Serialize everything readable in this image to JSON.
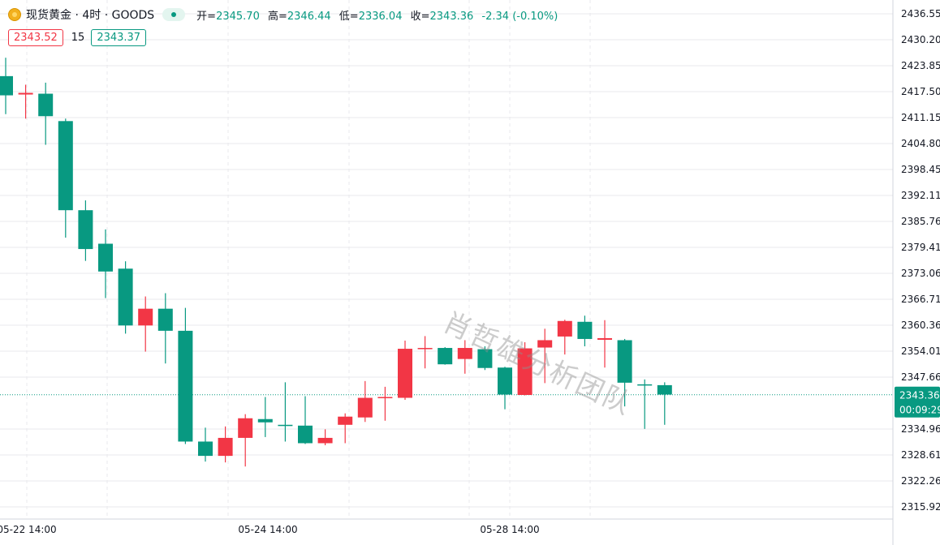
{
  "header": {
    "symbol": "现货黄金 · 4时 · GOODS",
    "open_label": "开=",
    "open_value": "2345.70",
    "high_label": "高=",
    "high_value": "2346.44",
    "low_label": "低=",
    "low_value": "2336.04",
    "close_label": "收=",
    "close_value": "2343.36",
    "change": "-2.34 (-0.10%)"
  },
  "quote": {
    "sell": "2343.52",
    "spread": "15",
    "buy": "2343.37"
  },
  "watermark": "肖哲雄分析团队",
  "colors": {
    "up": "#f23645",
    "down": "#089981",
    "grid": "#e8e9ec",
    "text": "#131722"
  },
  "chart_data": {
    "type": "candlestick",
    "y_ticks": [
      "2436.55",
      "2430.20",
      "2423.85",
      "2417.50",
      "2411.15",
      "2404.80",
      "2398.45",
      "2392.11",
      "2385.76",
      "2379.41",
      "2373.06",
      "2366.71",
      "2360.36",
      "2354.01",
      "2347.66",
      "2334.96",
      "2328.61",
      "2322.26",
      "2315.92"
    ],
    "x_labels": [
      "05-22 14:00",
      "05-24 14:00",
      "05-28 14:00"
    ],
    "last_price": "2343.36",
    "countdown": "00:09:29",
    "ylim": [
      2314,
      2437
    ],
    "candles": [
      {
        "o": 2421.3,
        "h": 2425.8,
        "l": 2412.0,
        "c": 2416.6
      },
      {
        "o": 2416.8,
        "h": 2419.2,
        "l": 2410.9,
        "c": 2417.2
      },
      {
        "o": 2417.0,
        "h": 2419.7,
        "l": 2404.5,
        "c": 2411.5
      },
      {
        "o": 2410.3,
        "h": 2410.9,
        "l": 2381.8,
        "c": 2388.5
      },
      {
        "o": 2388.5,
        "h": 2390.9,
        "l": 2376.1,
        "c": 2379.0
      },
      {
        "o": 2380.3,
        "h": 2383.8,
        "l": 2367.0,
        "c": 2373.5
      },
      {
        "o": 2374.2,
        "h": 2376.0,
        "l": 2358.3,
        "c": 2360.3
      },
      {
        "o": 2360.3,
        "h": 2367.4,
        "l": 2353.9,
        "c": 2364.4
      },
      {
        "o": 2364.4,
        "h": 2368.2,
        "l": 2351.0,
        "c": 2359.0
      },
      {
        "o": 2359.0,
        "h": 2364.6,
        "l": 2331.3,
        "c": 2331.9
      },
      {
        "o": 2331.9,
        "h": 2335.3,
        "l": 2327.0,
        "c": 2328.4
      },
      {
        "o": 2328.4,
        "h": 2335.6,
        "l": 2326.8,
        "c": 2332.8
      },
      {
        "o": 2332.8,
        "h": 2338.6,
        "l": 2325.8,
        "c": 2337.6
      },
      {
        "o": 2337.4,
        "h": 2342.8,
        "l": 2333.0,
        "c": 2336.6
      },
      {
        "o": 2336.0,
        "h": 2346.4,
        "l": 2331.9,
        "c": 2335.7
      },
      {
        "o": 2335.8,
        "h": 2343.0,
        "l": 2331.3,
        "c": 2331.5
      },
      {
        "o": 2331.5,
        "h": 2334.9,
        "l": 2331.0,
        "c": 2332.8
      },
      {
        "o": 2336.0,
        "h": 2338.8,
        "l": 2331.5,
        "c": 2338.0
      },
      {
        "o": 2337.8,
        "h": 2346.7,
        "l": 2336.7,
        "c": 2342.6
      },
      {
        "o": 2342.6,
        "h": 2345.3,
        "l": 2337.0,
        "c": 2342.8
      },
      {
        "o": 2342.6,
        "h": 2356.6,
        "l": 2342.1,
        "c": 2354.6
      },
      {
        "o": 2354.6,
        "h": 2357.7,
        "l": 2349.8,
        "c": 2354.8
      },
      {
        "o": 2354.8,
        "h": 2355.0,
        "l": 2350.7,
        "c": 2350.8
      },
      {
        "o": 2352.1,
        "h": 2356.7,
        "l": 2348.5,
        "c": 2354.8
      },
      {
        "o": 2354.5,
        "h": 2355.2,
        "l": 2349.4,
        "c": 2349.9
      },
      {
        "o": 2350.0,
        "h": 2350.2,
        "l": 2339.8,
        "c": 2343.4
      },
      {
        "o": 2343.3,
        "h": 2356.2,
        "l": 2343.2,
        "c": 2354.7
      },
      {
        "o": 2354.9,
        "h": 2359.5,
        "l": 2346.2,
        "c": 2356.7
      },
      {
        "o": 2357.6,
        "h": 2361.7,
        "l": 2353.2,
        "c": 2361.4
      },
      {
        "o": 2361.2,
        "h": 2362.7,
        "l": 2355.2,
        "c": 2357.0
      },
      {
        "o": 2356.8,
        "h": 2361.6,
        "l": 2350.0,
        "c": 2357.2
      },
      {
        "o": 2356.7,
        "h": 2357.0,
        "l": 2340.5,
        "c": 2346.3
      },
      {
        "o": 2345.9,
        "h": 2347.1,
        "l": 2335.0,
        "c": 2345.6
      },
      {
        "o": 2345.7,
        "h": 2346.4,
        "l": 2336.0,
        "c": 2343.4
      }
    ]
  }
}
